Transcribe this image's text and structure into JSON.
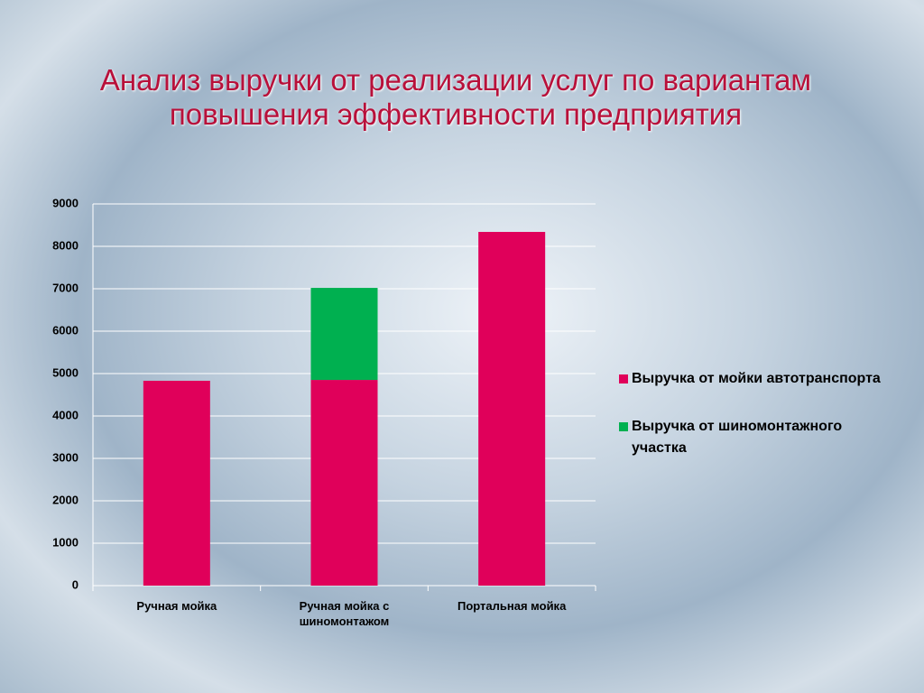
{
  "chart_data": {
    "type": "stacked_bar",
    "title": "Анализ выручки от реализации услуг по вариантам повышения эффективности предприятия",
    "categories": [
      "Ручная мойка",
      "Ручная мойка с шиномонтажом",
      "Портальная мойка"
    ],
    "series": [
      {
        "name": "Выручка от мойки автотранспорта",
        "color": "#e0005a",
        "values": [
          4830,
          4850,
          8340
        ]
      },
      {
        "name": "Выручка от шиномонтажного участка",
        "color": "#00b050",
        "values": [
          null,
          2170,
          null
        ]
      }
    ],
    "ylim": [
      0,
      9000
    ],
    "yticks": [
      0,
      1000,
      2000,
      3000,
      4000,
      5000,
      6000,
      7000,
      8000,
      9000
    ],
    "grid": true,
    "legend": "right"
  }
}
